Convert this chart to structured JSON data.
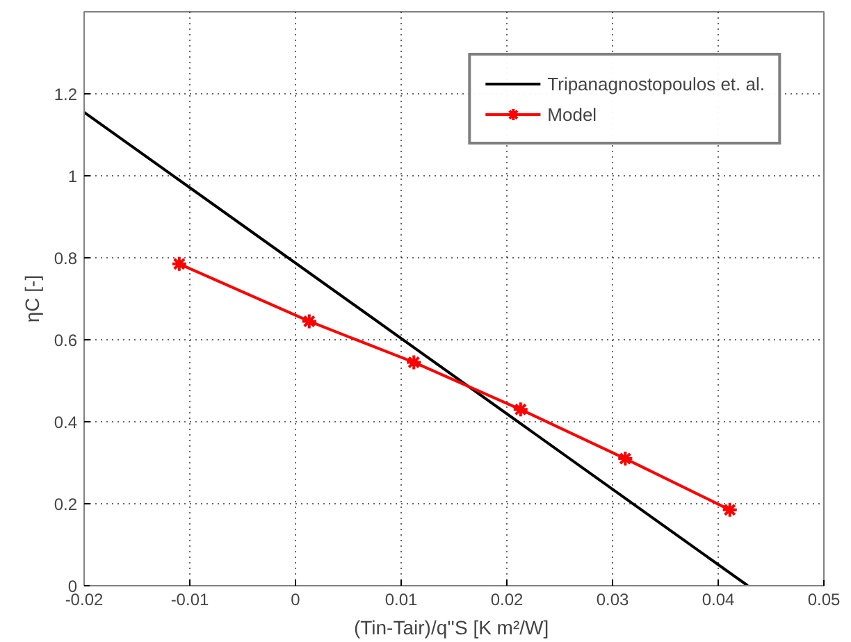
{
  "chart_data": {
    "type": "line",
    "xlabel": "(Tin-Tair)/q''S  [K m²/W]",
    "ylabel": "ηC [-]",
    "xlim": [
      -0.02,
      0.05
    ],
    "ylim": [
      0,
      1.4
    ],
    "xticks": [
      -0.02,
      -0.01,
      0,
      0.01,
      0.02,
      0.03,
      0.04,
      0.05
    ],
    "yticks": [
      0,
      0.2,
      0.4,
      0.6,
      0.8,
      1,
      1.2
    ],
    "grid": true,
    "legend": "top right",
    "series": [
      {
        "name": "Tripanagnostopoulos et. al.",
        "color": "#000000",
        "marker": "none",
        "x": [
          -0.02,
          0.0428
        ],
        "values": [
          1.155,
          0
        ]
      },
      {
        "name": "Model",
        "color": "#ff0000",
        "marker": "cross",
        "x": [
          -0.011,
          0.0013,
          0.0112,
          0.0213,
          0.0312,
          0.0411
        ],
        "values": [
          0.785,
          0.645,
          0.545,
          0.43,
          0.31,
          0.185
        ]
      }
    ]
  }
}
